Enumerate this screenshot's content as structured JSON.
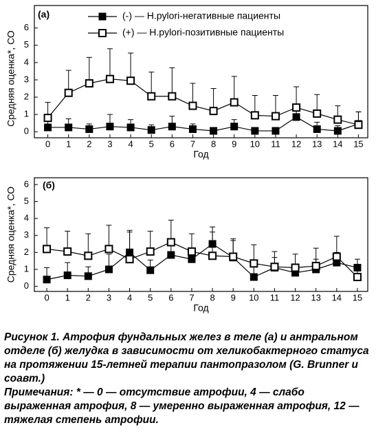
{
  "chart_data": [
    {
      "type": "line",
      "panel_label": "(а)",
      "ylabel": "Средняя оценка*, СО",
      "xlabel": "Год",
      "x": [
        0,
        1,
        2,
        3,
        4,
        5,
        6,
        7,
        8,
        9,
        10,
        11,
        12,
        13,
        14,
        15
      ],
      "xlim": [
        -0.65,
        15.45
      ],
      "xticks": [
        0,
        1,
        2,
        3,
        4,
        5,
        6,
        7,
        8,
        9,
        10,
        11,
        12,
        13,
        14,
        15
      ],
      "ylim": [
        -0.35,
        7.3
      ],
      "yticks": [
        0,
        1,
        2,
        3,
        4,
        5,
        6
      ],
      "series": [
        {
          "name": "(-) — H.pylori-негативные пациенты",
          "color": "#000000",
          "marker": "square-filled",
          "values": [
            0.25,
            0.25,
            0.15,
            0.3,
            0.25,
            0.1,
            0.3,
            0.15,
            0.05,
            0.3,
            0.05,
            0.05,
            0.85,
            0.15,
            0.05,
            0.45
          ],
          "errors": [
            0.5,
            0.5,
            0.3,
            0.7,
            0.45,
            0.3,
            0.6,
            0.3,
            0.1,
            0.4,
            0.1,
            0.1,
            0.5,
            0.4,
            0.3,
            0.7
          ]
        },
        {
          "name": "(+) — H.pylori-позитивные пациенты",
          "color": "#000000",
          "marker": "square-open",
          "values": [
            0.8,
            2.25,
            2.8,
            3.05,
            2.95,
            2.05,
            2.05,
            1.5,
            1.2,
            1.7,
            0.95,
            0.9,
            1.4,
            1.05,
            0.7,
            0.4
          ],
          "errors": [
            0.9,
            1.3,
            1.5,
            1.75,
            1.6,
            1.4,
            1.65,
            1.3,
            1.3,
            1.5,
            1.15,
            1.2,
            1.2,
            1.1,
            0.8,
            0.75
          ]
        }
      ]
    },
    {
      "type": "line",
      "panel_label": "(б)",
      "ylabel": "Средняя оценка*, СО",
      "xlabel": "Год",
      "x": [
        0,
        1,
        2,
        3,
        4,
        5,
        6,
        7,
        8,
        9,
        10,
        11,
        12,
        13,
        14,
        15
      ],
      "xlim": [
        -0.6,
        15.5
      ],
      "xticks": [
        0,
        1,
        2,
        3,
        4,
        5,
        6,
        7,
        8,
        9,
        10,
        11,
        12,
        13,
        14,
        15
      ],
      "ylim": [
        -0.3,
        6.4
      ],
      "yticks": [
        0,
        1,
        2,
        3,
        4,
        5,
        6
      ],
      "series": [
        {
          "color": "#000000",
          "marker": "square-filled",
          "values": [
            0.4,
            0.65,
            0.6,
            1.0,
            2.0,
            0.95,
            1.85,
            1.6,
            2.5,
            1.7,
            0.55,
            1.1,
            0.8,
            1.0,
            1.4,
            1.1
          ],
          "errors": [
            0.7,
            0.75,
            0.55,
            0.9,
            1.3,
            0.6,
            0.8,
            0.6,
            1.0,
            1.0,
            0.7,
            0.6,
            0.5,
            0.6,
            0.6,
            0.5
          ]
        },
        {
          "color": "#000000",
          "marker": "square-open",
          "values": [
            2.2,
            2.05,
            1.8,
            2.2,
            1.6,
            2.05,
            2.6,
            2.05,
            1.8,
            1.75,
            1.35,
            1.15,
            1.1,
            1.2,
            1.75,
            0.55
          ],
          "errors": [
            1.25,
            1.2,
            1.3,
            1.4,
            1.6,
            1.2,
            1.3,
            1.05,
            1.4,
            1.05,
            1.1,
            0.9,
            0.8,
            1.05,
            1.2,
            0.55
          ]
        }
      ]
    }
  ],
  "caption": {
    "title": "Рисунок 1. Атрофия фундальных желез в теле (а) и антральном отделе (б) желудка в зависимости от хеликобактерного статуса на протяжении 15-летней терапии пантопразолом (G. Brunner и соавт.)",
    "notes": "Примечания: * — 0 — отсутствие атрофии, 4 — слабо выраженная атрофия, 8 — умеренно выраженная атрофия, 12 — тяжелая степень атрофии."
  }
}
